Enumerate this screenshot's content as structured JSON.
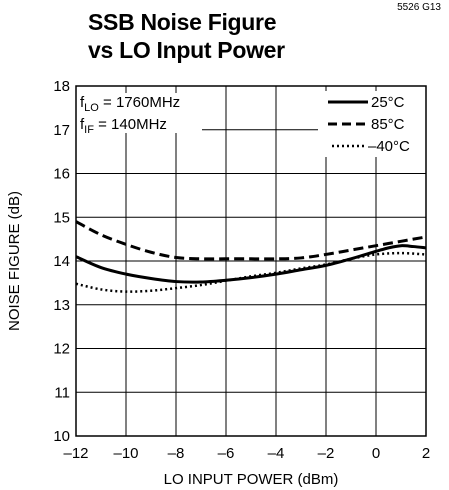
{
  "figure_id": "5526 G13",
  "chart_data": {
    "type": "line",
    "title_line1": "SSB Noise Figure",
    "title_line2": "vs LO Input Power",
    "xlabel": "LO INPUT POWER (dBm)",
    "ylabel": "NOISE FIGURE (dB)",
    "xlim": [
      -12,
      2
    ],
    "ylim": [
      10,
      18
    ],
    "xticks": [
      -12,
      -10,
      -8,
      -6,
      -4,
      -2,
      0,
      2
    ],
    "yticks": [
      10,
      11,
      12,
      13,
      14,
      15,
      16,
      17,
      18
    ],
    "xtick_labels": [
      "–12",
      "–10",
      "–8",
      "–6",
      "–4",
      "–2",
      "0",
      "2"
    ],
    "ytick_labels": [
      "10",
      "11",
      "12",
      "13",
      "14",
      "15",
      "16",
      "17",
      "18"
    ],
    "grid": true,
    "legend_position": "top-right",
    "annotations": {
      "flo_base": "f",
      "flo_sub": "LO",
      "flo_value": " = 1760MHz",
      "fif_base": "f",
      "fif_sub": "IF",
      "fif_value": " = 140MHz"
    },
    "series": [
      {
        "name": "25°C",
        "style": "solid",
        "x": [
          -12,
          -11,
          -10,
          -9,
          -8,
          -7,
          -6,
          -5,
          -4,
          -3,
          -2,
          -1,
          0,
          0.5,
          1,
          1.5,
          2
        ],
        "y": [
          14.1,
          13.85,
          13.7,
          13.6,
          13.53,
          13.52,
          13.56,
          13.62,
          13.7,
          13.8,
          13.9,
          14.05,
          14.22,
          14.3,
          14.35,
          14.33,
          14.3
        ]
      },
      {
        "name": "85°C",
        "style": "dashed",
        "x": [
          -12,
          -11,
          -10,
          -9,
          -8,
          -7,
          -6,
          -5,
          -4,
          -3,
          -2,
          -1,
          0,
          1,
          2
        ],
        "y": [
          14.9,
          14.6,
          14.38,
          14.2,
          14.08,
          14.05,
          14.05,
          14.05,
          14.05,
          14.07,
          14.15,
          14.25,
          14.35,
          14.45,
          14.55
        ]
      },
      {
        "name": "–40°C",
        "style": "dotted",
        "x": [
          -12,
          -11,
          -10,
          -9,
          -8,
          -7,
          -6,
          -5,
          -4,
          -3,
          -2,
          -1,
          0,
          1,
          2
        ],
        "y": [
          13.48,
          13.35,
          13.3,
          13.32,
          13.38,
          13.45,
          13.55,
          13.65,
          13.73,
          13.83,
          13.92,
          14.05,
          14.15,
          14.18,
          14.15
        ]
      }
    ]
  }
}
